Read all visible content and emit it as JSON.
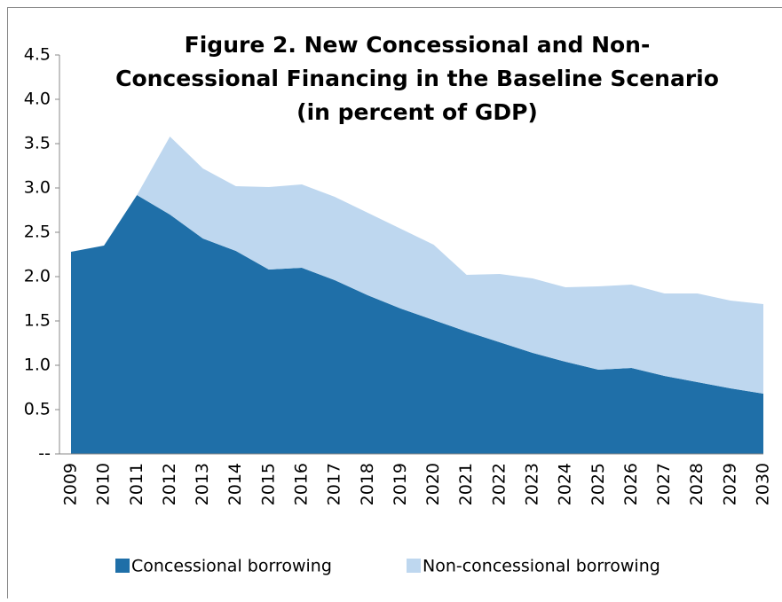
{
  "chart_data": {
    "type": "stacked-area",
    "title": "Figure 2. New Concessional and Non-Concessional Financing  in the Baseline Scenario (in percent of GDP)",
    "title_lines": [
      "Figure 2. New Concessional and Non-",
      "Concessional Financing  in the Baseline Scenario",
      "(in percent of GDP)"
    ],
    "categories": [
      "2009",
      "2010",
      "2011",
      "2012",
      "2013",
      "2014",
      "2015",
      "2016",
      "2017",
      "2018",
      "2019",
      "2020",
      "2021",
      "2022",
      "2023",
      "2024",
      "2025",
      "2026",
      "2027",
      "2028",
      "2029",
      "2030"
    ],
    "series": [
      {
        "name": "Concessional borrowing",
        "color": "#1f6fa8",
        "values": [
          2.28,
          2.35,
          2.92,
          2.7,
          2.43,
          2.29,
          2.08,
          2.1,
          1.96,
          1.79,
          1.64,
          1.51,
          1.38,
          1.26,
          1.14,
          1.04,
          0.95,
          0.97,
          0.88,
          0.81,
          0.74,
          0.68
        ]
      },
      {
        "name": "Non-concessional borrowing",
        "color": "#bed7ef",
        "values": [
          0,
          0,
          0,
          0.88,
          0.79,
          0.73,
          0.93,
          0.94,
          0.94,
          0.93,
          0.9,
          0.85,
          0.64,
          0.77,
          0.84,
          0.84,
          0.94,
          0.94,
          0.93,
          1.0,
          0.99,
          1.01
        ]
      }
    ],
    "ylim": [
      0,
      4.5
    ],
    "yticks": [
      {
        "value": 0,
        "label": "--"
      },
      0.5,
      {
        "value": 1,
        "label": "1.0"
      },
      1.5,
      {
        "value": 2,
        "label": "2.0"
      },
      2.5,
      {
        "value": 3,
        "label": "3.0"
      },
      3.5,
      {
        "value": 4,
        "label": "4.0"
      },
      4.5
    ],
    "legend": "bottom"
  }
}
